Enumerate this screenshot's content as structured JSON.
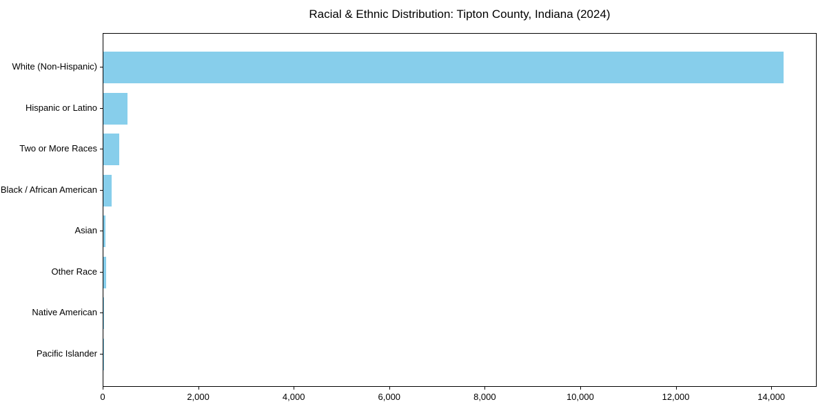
{
  "chart_data": {
    "type": "bar",
    "orientation": "horizontal",
    "title": "Racial & Ethnic Distribution: Tipton County, Indiana (2024)",
    "categories": [
      "White (Non-Hispanic)",
      "Hispanic or Latino",
      "Two or More Races",
      "Black / African American",
      "Asian",
      "Other Race",
      "Native American",
      "Pacific Islander"
    ],
    "values": [
      14250,
      500,
      330,
      170,
      50,
      60,
      20,
      5
    ],
    "xlabel": "",
    "ylabel": "",
    "xlim": [
      0,
      14950
    ],
    "x_ticks": [
      0,
      2000,
      4000,
      6000,
      8000,
      10000,
      12000,
      14000
    ],
    "x_tick_labels": [
      "0",
      "2,000",
      "4,000",
      "6,000",
      "8,000",
      "10,000",
      "12,000",
      "14,000"
    ],
    "grid": false,
    "legend_position": "none",
    "bar_color": "#87CEEB",
    "background_color": "#FFFFFF",
    "text_color": "#000000"
  }
}
